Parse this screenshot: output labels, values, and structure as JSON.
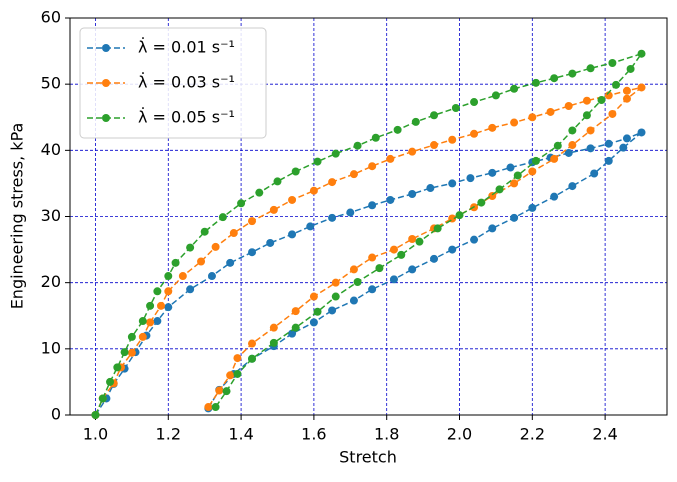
{
  "chart_data": {
    "type": "line",
    "x_label": "Stretch",
    "y_label": "Engineering stress, kPa",
    "xlim": [
      0.93,
      2.57
    ],
    "ylim": [
      0,
      60
    ],
    "xticks": [
      {
        "value": 1.0,
        "label": "1.0"
      },
      1.2,
      1.4,
      1.6,
      1.8,
      {
        "value": 2.0,
        "label": "2.0"
      },
      2.2,
      2.4
    ],
    "yticks": [
      0,
      10,
      20,
      30,
      40,
      50,
      60
    ],
    "grid": true,
    "legend": "upper left",
    "series": [
      {
        "name": "λ̇ = 0.01 s⁻¹",
        "color": "#1f77b4",
        "x": [
          1.0,
          1.03,
          1.05,
          1.08,
          1.11,
          1.14,
          1.17,
          1.2,
          1.26,
          1.32,
          1.37,
          1.43,
          1.48,
          1.54,
          1.59,
          1.65,
          1.7,
          1.76,
          1.81,
          1.87,
          1.92,
          1.98,
          2.03,
          2.09,
          2.14,
          2.2,
          2.25,
          2.3,
          2.36,
          2.41,
          2.46,
          2.5,
          2.45,
          2.41,
          2.37,
          2.31,
          2.26,
          2.2,
          2.15,
          2.09,
          2.04,
          1.98,
          1.93,
          1.87,
          1.82,
          1.76,
          1.71,
          1.65,
          1.6,
          1.54,
          1.49,
          1.43,
          1.38,
          1.34,
          1.31
        ],
        "values": [
          0,
          2.5,
          4.7,
          7,
          9.5,
          12,
          14.2,
          16.3,
          19,
          21,
          23,
          24.6,
          26,
          27.3,
          28.5,
          29.8,
          30.6,
          31.7,
          32.5,
          33.4,
          34.3,
          35.0,
          35.8,
          36.6,
          37.4,
          38.2,
          38.9,
          39.6,
          40.3,
          41.0,
          41.8,
          42.7,
          40.4,
          38.4,
          36.5,
          34.6,
          33.0,
          31.3,
          29.8,
          28.2,
          26.5,
          25.0,
          23.6,
          22.0,
          20.5,
          19.0,
          17.3,
          15.8,
          14.0,
          12.3,
          10.4,
          8.5,
          6.2,
          3.8,
          1.0
        ]
      },
      {
        "name": "λ̇ = 0.03 s⁻¹",
        "color": "#ff7f0e",
        "x": [
          1.0,
          1.02,
          1.05,
          1.07,
          1.1,
          1.13,
          1.15,
          1.18,
          1.2,
          1.24,
          1.29,
          1.33,
          1.38,
          1.43,
          1.49,
          1.54,
          1.6,
          1.65,
          1.71,
          1.76,
          1.81,
          1.87,
          1.93,
          1.98,
          2.04,
          2.09,
          2.15,
          2.2,
          2.25,
          2.3,
          2.35,
          2.41,
          2.46,
          2.5,
          2.46,
          2.42,
          2.36,
          2.31,
          2.26,
          2.2,
          2.15,
          2.09,
          2.04,
          1.98,
          1.93,
          1.87,
          1.82,
          1.76,
          1.71,
          1.66,
          1.6,
          1.55,
          1.49,
          1.43,
          1.39,
          1.37,
          1.34,
          1.31
        ],
        "values": [
          0,
          2.5,
          4.8,
          7.2,
          9.4,
          11.8,
          14,
          16.5,
          18.7,
          21,
          23.2,
          25.4,
          27.5,
          29.3,
          31,
          32.5,
          33.9,
          35.2,
          36.4,
          37.6,
          38.7,
          39.8,
          40.8,
          41.6,
          42.5,
          43.4,
          44.2,
          45,
          45.8,
          46.7,
          47.5,
          48.3,
          49,
          49.5,
          47.8,
          45.5,
          43.0,
          40.8,
          38.7,
          36.8,
          35,
          33.1,
          31.4,
          29.7,
          28.2,
          26.6,
          25.0,
          23.8,
          22,
          20,
          17.9,
          15.7,
          13.2,
          10.8,
          8.6,
          6,
          3.7,
          1.2
        ]
      },
      {
        "name": "λ̇ = 0.05 s⁻¹",
        "color": "#2ca02c",
        "x": [
          1.0,
          1.02,
          1.04,
          1.06,
          1.08,
          1.1,
          1.13,
          1.15,
          1.17,
          1.2,
          1.22,
          1.26,
          1.3,
          1.35,
          1.4,
          1.45,
          1.5,
          1.55,
          1.61,
          1.66,
          1.72,
          1.77,
          1.83,
          1.88,
          1.93,
          1.99,
          2.04,
          2.1,
          2.15,
          2.21,
          2.26,
          2.31,
          2.36,
          2.42,
          2.5,
          2.47,
          2.43,
          2.39,
          2.35,
          2.31,
          2.27,
          2.21,
          2.16,
          2.11,
          2.06,
          2.0,
          1.94,
          1.89,
          1.84,
          1.78,
          1.72,
          1.66,
          1.61,
          1.55,
          1.49,
          1.43,
          1.39,
          1.36,
          1.33
        ],
        "values": [
          0,
          2.5,
          5,
          7.2,
          9.5,
          11.8,
          14.2,
          16.5,
          18.7,
          21,
          23,
          25.3,
          27.7,
          29.9,
          32,
          33.6,
          35.3,
          36.8,
          38.3,
          39.5,
          40.7,
          41.9,
          43.1,
          44.3,
          45.3,
          46.4,
          47.3,
          48.3,
          49.3,
          50.2,
          50.9,
          51.6,
          52.4,
          53.2,
          54.6,
          52.3,
          49.9,
          47.6,
          45.3,
          43,
          40.7,
          38.4,
          36.2,
          34.1,
          32.1,
          30.2,
          28.2,
          26.2,
          24.2,
          22.2,
          20.1,
          17.9,
          15.6,
          13.2,
          10.9,
          8.5,
          6.2,
          3.6,
          1.2
        ]
      }
    ]
  }
}
